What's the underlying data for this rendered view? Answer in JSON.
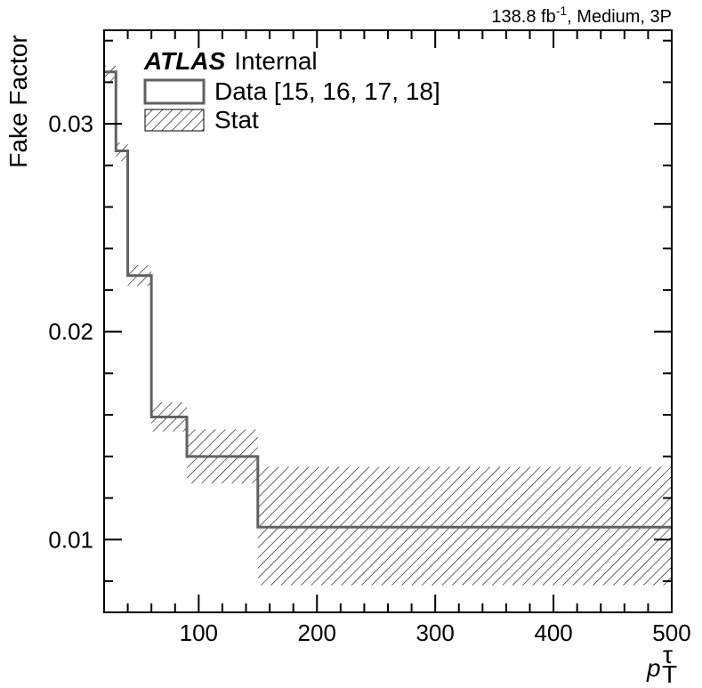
{
  "chart_data": {
    "type": "line",
    "style": "step-histogram",
    "ylabel": "Fake Factor",
    "xlabel_main": "p",
    "xlabel_sub": "T",
    "xlabel_sup": "τ",
    "annotation": {
      "lumi_value": "138.8 fb",
      "lumi_exp": "-1",
      "lumi_rest": ", Medium, 3P"
    },
    "atlas_label": {
      "bold": "ATLAS",
      "text": "Internal"
    },
    "xlim": [
      20,
      500
    ],
    "ylim": [
      0.0065,
      0.0345
    ],
    "x_ticks": [
      100,
      200,
      300,
      400,
      500
    ],
    "y_ticks": [
      0.01,
      0.02,
      0.03
    ],
    "x_tick_labels": [
      "100",
      "200",
      "300",
      "400",
      "500"
    ],
    "y_tick_labels": [
      "0.01",
      "0.02",
      "0.03"
    ],
    "series": [
      {
        "name": "Data [15, 16, 17, 18]",
        "color": "#616161",
        "bins": [
          {
            "x_low": 20,
            "x_high": 30,
            "value": 0.0325,
            "stat_low": 0.032,
            "stat_high": 0.0328
          },
          {
            "x_low": 30,
            "x_high": 40,
            "value": 0.0287,
            "stat_low": 0.0282,
            "stat_high": 0.0291
          },
          {
            "x_low": 40,
            "x_high": 60,
            "value": 0.0227,
            "stat_low": 0.0222,
            "stat_high": 0.0232
          },
          {
            "x_low": 60,
            "x_high": 90,
            "value": 0.0159,
            "stat_low": 0.0152,
            "stat_high": 0.0166
          },
          {
            "x_low": 90,
            "x_high": 150,
            "value": 0.014,
            "stat_low": 0.0127,
            "stat_high": 0.0153
          },
          {
            "x_low": 150,
            "x_high": 500,
            "value": 0.0106,
            "stat_low": 0.0078,
            "stat_high": 0.0135
          }
        ]
      }
    ],
    "legend": [
      {
        "label": "Data [15, 16, 17, 18]",
        "kind": "line"
      },
      {
        "label": "Stat",
        "kind": "hatch"
      }
    ],
    "legend_position": "top-left"
  }
}
